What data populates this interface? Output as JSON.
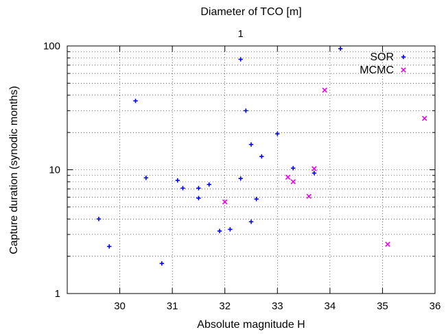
{
  "chart_data": {
    "type": "scatter",
    "title": "",
    "xlabel": "Absolute magnitude H",
    "ylabel": "Capture duration (synodic months)",
    "x2label": "Diameter of TCO [m]",
    "x2ticks": [
      {
        "label": "1",
        "at_H": 32.3
      }
    ],
    "xlim": [
      29,
      36
    ],
    "ylim": [
      1,
      100
    ],
    "yscale": "log",
    "xticks": [
      30,
      31,
      32,
      33,
      34,
      35,
      36
    ],
    "yticks": [
      1,
      10,
      100
    ],
    "grid": true,
    "legend_position": "top-right",
    "series": [
      {
        "name": "SOR",
        "marker": "plus",
        "color": "#0000ee",
        "points": [
          {
            "x": 29.6,
            "y": 4.0
          },
          {
            "x": 29.8,
            "y": 2.4
          },
          {
            "x": 30.3,
            "y": 36
          },
          {
            "x": 30.5,
            "y": 8.6
          },
          {
            "x": 30.8,
            "y": 1.75
          },
          {
            "x": 31.1,
            "y": 8.2
          },
          {
            "x": 31.2,
            "y": 7.1
          },
          {
            "x": 31.5,
            "y": 7.1
          },
          {
            "x": 31.5,
            "y": 5.9
          },
          {
            "x": 31.7,
            "y": 7.6
          },
          {
            "x": 31.9,
            "y": 3.2
          },
          {
            "x": 32.1,
            "y": 3.3
          },
          {
            "x": 32.3,
            "y": 78
          },
          {
            "x": 32.3,
            "y": 8.5
          },
          {
            "x": 32.4,
            "y": 30
          },
          {
            "x": 32.5,
            "y": 16
          },
          {
            "x": 32.5,
            "y": 3.8
          },
          {
            "x": 32.6,
            "y": 5.8
          },
          {
            "x": 32.7,
            "y": 12.8
          },
          {
            "x": 33.0,
            "y": 19.5
          },
          {
            "x": 33.3,
            "y": 10.3
          },
          {
            "x": 33.7,
            "y": 9.4
          },
          {
            "x": 34.2,
            "y": 95
          }
        ]
      },
      {
        "name": "MCMC",
        "marker": "cross",
        "color": "#ee00ee",
        "points": [
          {
            "x": 32.0,
            "y": 5.5
          },
          {
            "x": 33.2,
            "y": 8.7
          },
          {
            "x": 33.3,
            "y": 8.0
          },
          {
            "x": 33.6,
            "y": 6.1
          },
          {
            "x": 33.7,
            "y": 10.2
          },
          {
            "x": 33.9,
            "y": 44
          },
          {
            "x": 35.1,
            "y": 2.5
          },
          {
            "x": 35.8,
            "y": 26
          }
        ]
      }
    ]
  }
}
